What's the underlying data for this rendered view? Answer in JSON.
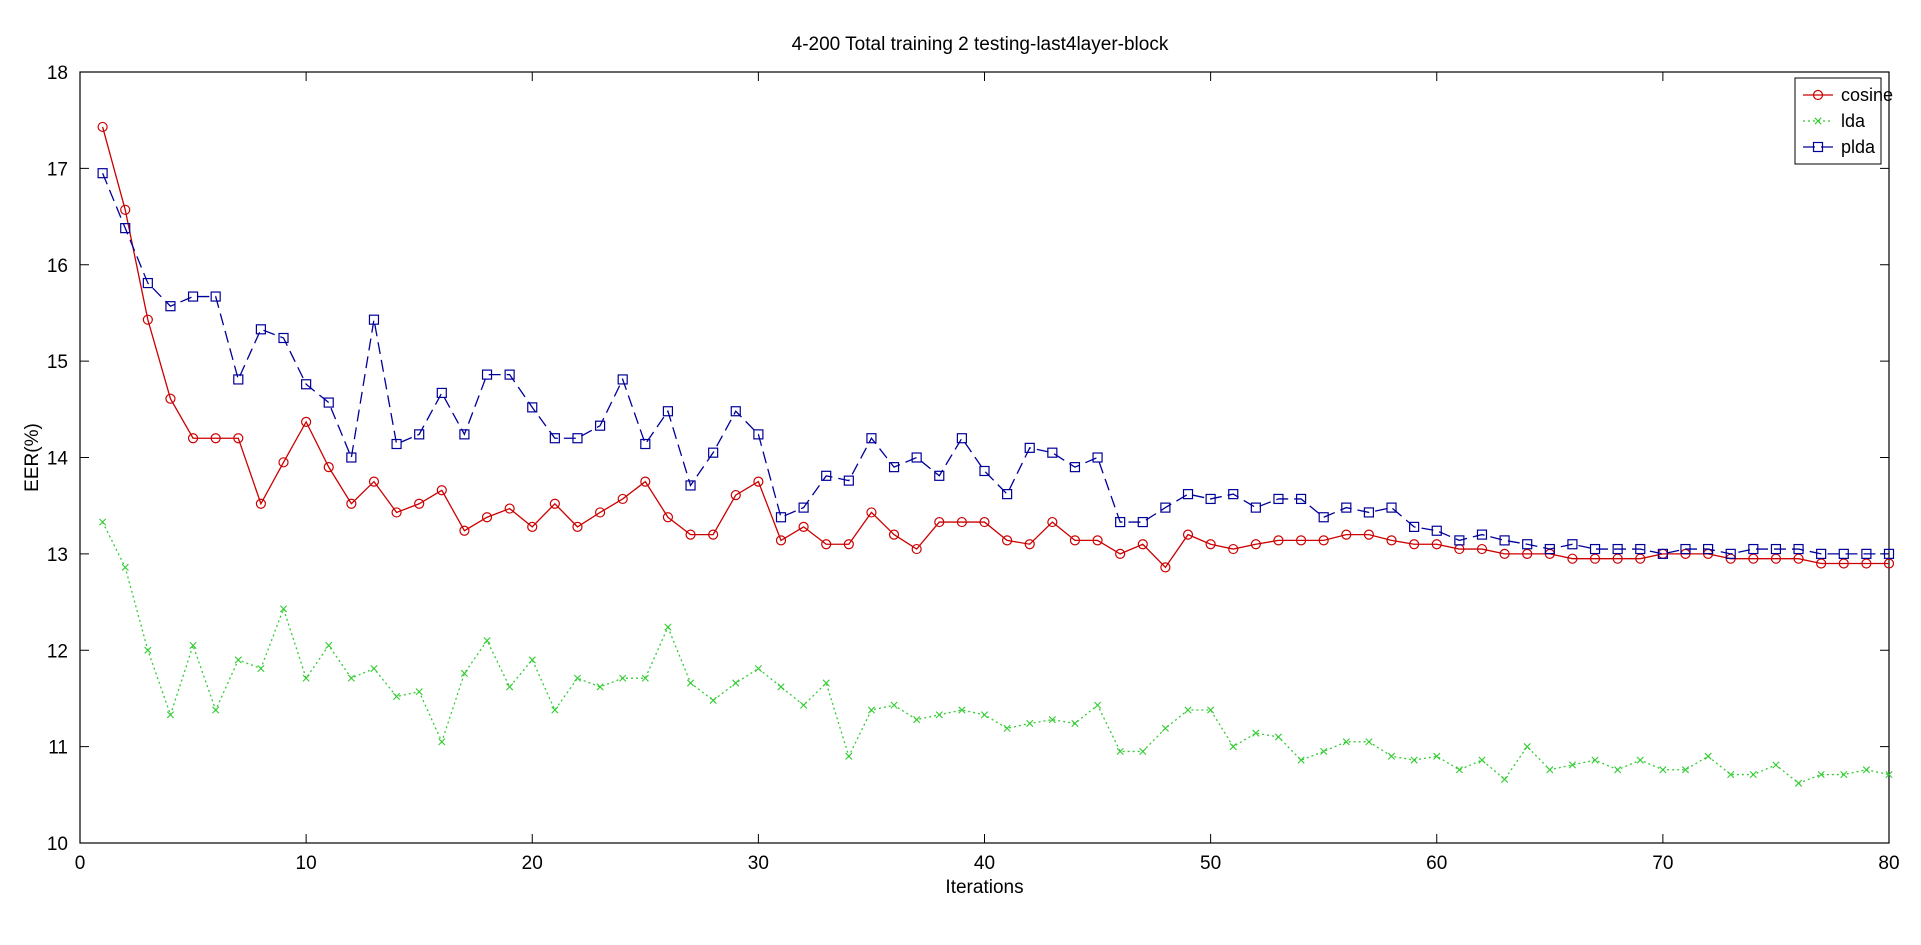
{
  "chart_data": {
    "type": "line",
    "title": "4-200 Total training 2 testing-last4layer-block",
    "xlabel": "Iterations",
    "ylabel": "EER(%)",
    "xlim": [
      0,
      80
    ],
    "ylim": [
      10,
      18
    ],
    "xticks": [
      "0",
      "10",
      "20",
      "30",
      "40",
      "50",
      "60",
      "70",
      "80"
    ],
    "yticks": [
      "10",
      "11",
      "12",
      "13",
      "14",
      "15",
      "16",
      "17",
      "18"
    ],
    "grid": false,
    "legend_position": "top-right",
    "x": [
      1,
      2,
      3,
      4,
      5,
      6,
      7,
      8,
      9,
      10,
      11,
      12,
      13,
      14,
      15,
      16,
      17,
      18,
      19,
      20,
      21,
      22,
      23,
      24,
      25,
      26,
      27,
      28,
      29,
      30,
      31,
      32,
      33,
      34,
      35,
      36,
      37,
      38,
      39,
      40,
      41,
      42,
      43,
      44,
      45,
      46,
      47,
      48,
      49,
      50,
      51,
      52,
      53,
      54,
      55,
      56,
      57,
      58,
      59,
      60,
      61,
      62,
      63,
      64,
      65,
      66,
      67,
      68,
      69,
      70,
      71,
      72,
      73,
      74,
      75,
      76,
      77,
      78,
      79,
      80
    ],
    "series": [
      {
        "name": "cosine",
        "color": "#cc0000",
        "marker": "circle",
        "line": "solid",
        "values": [
          17.43,
          16.57,
          15.43,
          14.61,
          14.2,
          14.2,
          14.2,
          13.52,
          13.95,
          14.37,
          13.9,
          13.52,
          13.75,
          13.43,
          13.52,
          13.66,
          13.24,
          13.38,
          13.47,
          13.28,
          13.52,
          13.28,
          13.43,
          13.57,
          13.75,
          13.38,
          13.2,
          13.2,
          13.61,
          13.75,
          13.14,
          13.28,
          13.1,
          13.1,
          13.43,
          13.2,
          13.05,
          13.33,
          13.33,
          13.33,
          13.14,
          13.1,
          13.33,
          13.14,
          13.14,
          13.0,
          13.1,
          12.86,
          13.2,
          13.1,
          13.05,
          13.1,
          13.14,
          13.14,
          13.14,
          13.2,
          13.2,
          13.14,
          13.1,
          13.1,
          13.05,
          13.05,
          13.0,
          13.0,
          13.0,
          12.95,
          12.95,
          12.95,
          12.95,
          13.0,
          13.0,
          13.0,
          12.95,
          12.95,
          12.95,
          12.95,
          12.9,
          12.9,
          12.9,
          12.9
        ]
      },
      {
        "name": "lda",
        "color": "#33cc33",
        "marker": "x",
        "line": "dotted",
        "values": [
          13.33,
          12.86,
          12.0,
          11.33,
          12.05,
          11.38,
          11.9,
          11.81,
          12.43,
          11.71,
          12.05,
          11.71,
          11.81,
          11.52,
          11.57,
          11.05,
          11.76,
          12.1,
          11.62,
          11.9,
          11.38,
          11.71,
          11.62,
          11.71,
          11.71,
          12.24,
          11.66,
          11.48,
          11.66,
          11.81,
          11.62,
          11.43,
          11.66,
          10.9,
          11.38,
          11.43,
          11.28,
          11.33,
          11.38,
          11.33,
          11.19,
          11.24,
          11.28,
          11.24,
          11.43,
          10.95,
          10.95,
          11.19,
          11.38,
          11.38,
          11.0,
          11.14,
          11.1,
          10.86,
          10.95,
          11.05,
          11.05,
          10.9,
          10.86,
          10.9,
          10.76,
          10.86,
          10.66,
          11.0,
          10.76,
          10.81,
          10.86,
          10.76,
          10.86,
          10.76,
          10.76,
          10.9,
          10.71,
          10.71,
          10.81,
          10.62,
          10.71,
          10.71,
          10.76,
          10.71
        ]
      },
      {
        "name": "plda",
        "color": "#000099",
        "marker": "square",
        "line": "dashed",
        "values": [
          16.95,
          16.38,
          15.81,
          15.57,
          15.67,
          15.67,
          14.81,
          15.33,
          15.24,
          14.76,
          14.57,
          14.0,
          15.43,
          14.14,
          14.24,
          14.67,
          14.24,
          14.86,
          14.86,
          14.52,
          14.2,
          14.2,
          14.33,
          14.81,
          14.14,
          14.48,
          13.71,
          14.05,
          14.48,
          14.24,
          13.38,
          13.48,
          13.81,
          13.76,
          14.2,
          13.9,
          14.0,
          13.81,
          14.2,
          13.86,
          13.62,
          14.1,
          14.05,
          13.9,
          14.0,
          13.33,
          13.33,
          13.48,
          13.62,
          13.57,
          13.62,
          13.48,
          13.57,
          13.57,
          13.38,
          13.48,
          13.43,
          13.48,
          13.28,
          13.24,
          13.14,
          13.2,
          13.14,
          13.1,
          13.05,
          13.1,
          13.05,
          13.05,
          13.05,
          13.0,
          13.05,
          13.05,
          13.0,
          13.05,
          13.05,
          13.05,
          13.0,
          13.0,
          13.0,
          13.0
        ]
      }
    ]
  }
}
